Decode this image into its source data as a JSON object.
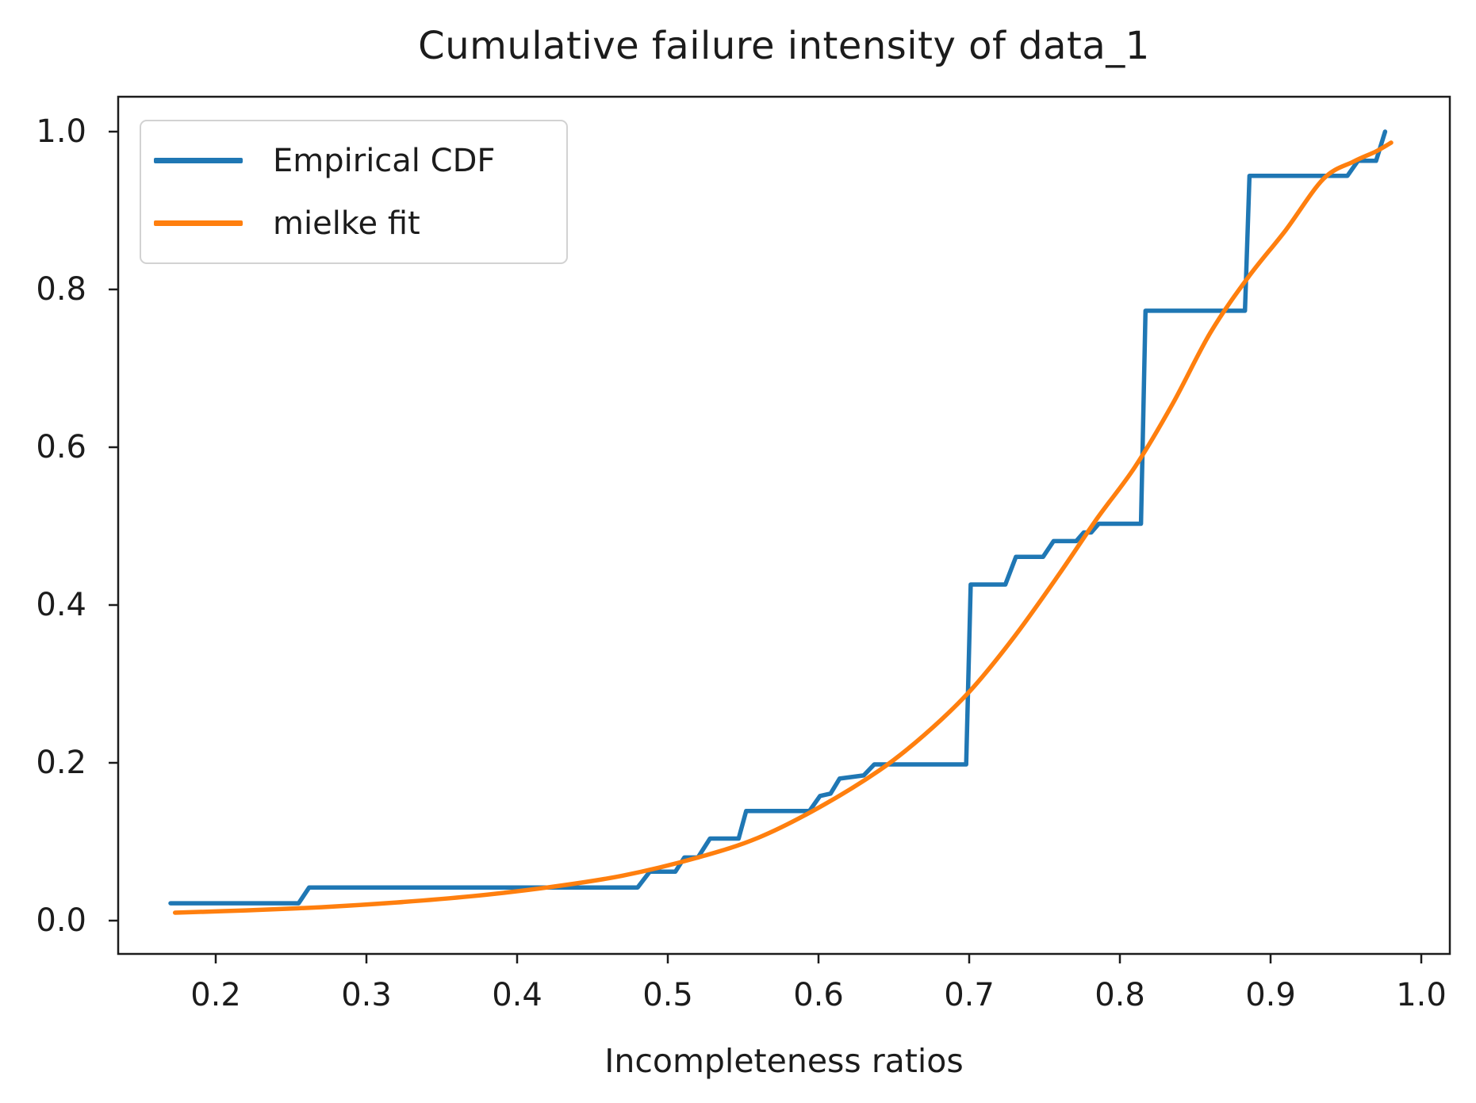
{
  "figure": {
    "title": "Cumulative failure intensity of data_1",
    "xlabel": "Incompleteness ratios"
  },
  "chart_data": {
    "type": "line",
    "title": "Cumulative failure intensity of data_1",
    "xlabel": "Incompleteness ratios",
    "ylabel": "",
    "grid": false,
    "legend_position": "upper left",
    "x_tick_labels": [
      "0.2",
      "0.3",
      "0.4",
      "0.5",
      "0.6",
      "0.7",
      "0.8",
      "0.9",
      "1.0"
    ],
    "x_tick_values": [
      0.2,
      0.3,
      0.4,
      0.5,
      0.6,
      0.7,
      0.8,
      0.9,
      1.0
    ],
    "y_tick_labels": [
      "0.0",
      "0.2",
      "0.4",
      "0.6",
      "0.8",
      "1.0"
    ],
    "y_tick_values": [
      0.0,
      0.2,
      0.4,
      0.6,
      0.8,
      1.0
    ],
    "xlim": [
      0.135,
      1.019
    ],
    "ylim": [
      -0.042,
      1.044
    ],
    "series": [
      {
        "name": "Empirical CDF",
        "color": "#1f77b4",
        "line_style": "step",
        "points": [
          [
            0.17,
            0.022
          ],
          [
            0.255,
            0.022
          ],
          [
            0.262,
            0.042
          ],
          [
            0.48,
            0.042
          ],
          [
            0.488,
            0.062
          ],
          [
            0.505,
            0.062
          ],
          [
            0.511,
            0.08
          ],
          [
            0.52,
            0.08
          ],
          [
            0.528,
            0.104
          ],
          [
            0.547,
            0.104
          ],
          [
            0.552,
            0.139
          ],
          [
            0.594,
            0.139
          ],
          [
            0.601,
            0.158
          ],
          [
            0.608,
            0.161
          ],
          [
            0.614,
            0.18
          ],
          [
            0.63,
            0.184
          ],
          [
            0.637,
            0.198
          ],
          [
            0.698,
            0.198
          ],
          [
            0.701,
            0.426
          ],
          [
            0.724,
            0.426
          ],
          [
            0.731,
            0.461
          ],
          [
            0.749,
            0.461
          ],
          [
            0.756,
            0.481
          ],
          [
            0.771,
            0.481
          ],
          [
            0.776,
            0.492
          ],
          [
            0.781,
            0.492
          ],
          [
            0.786,
            0.503
          ],
          [
            0.814,
            0.503
          ],
          [
            0.817,
            0.773
          ],
          [
            0.883,
            0.773
          ],
          [
            0.886,
            0.944
          ],
          [
            0.951,
            0.944
          ],
          [
            0.958,
            0.963
          ],
          [
            0.97,
            0.963
          ],
          [
            0.976,
            1.0
          ]
        ]
      },
      {
        "name": "mielke fit",
        "color": "#ff7f0e",
        "line_style": "smooth",
        "points": [
          [
            0.173,
            0.01
          ],
          [
            0.22,
            0.013
          ],
          [
            0.27,
            0.017
          ],
          [
            0.32,
            0.023
          ],
          [
            0.37,
            0.031
          ],
          [
            0.42,
            0.042
          ],
          [
            0.47,
            0.057
          ],
          [
            0.52,
            0.08
          ],
          [
            0.56,
            0.105
          ],
          [
            0.6,
            0.143
          ],
          [
            0.64,
            0.19
          ],
          [
            0.67,
            0.235
          ],
          [
            0.7,
            0.29
          ],
          [
            0.73,
            0.36
          ],
          [
            0.76,
            0.44
          ],
          [
            0.785,
            0.51
          ],
          [
            0.81,
            0.575
          ],
          [
            0.835,
            0.655
          ],
          [
            0.86,
            0.745
          ],
          [
            0.885,
            0.815
          ],
          [
            0.91,
            0.875
          ],
          [
            0.935,
            0.94
          ],
          [
            0.955,
            0.962
          ],
          [
            0.97,
            0.975
          ],
          [
            0.98,
            0.986
          ]
        ]
      }
    ]
  },
  "style": {
    "spine_color": "#1c1c1c",
    "text_color": "#1c1c1c",
    "legend_border_color": "#d2d2d2",
    "background": "#ffffff"
  }
}
